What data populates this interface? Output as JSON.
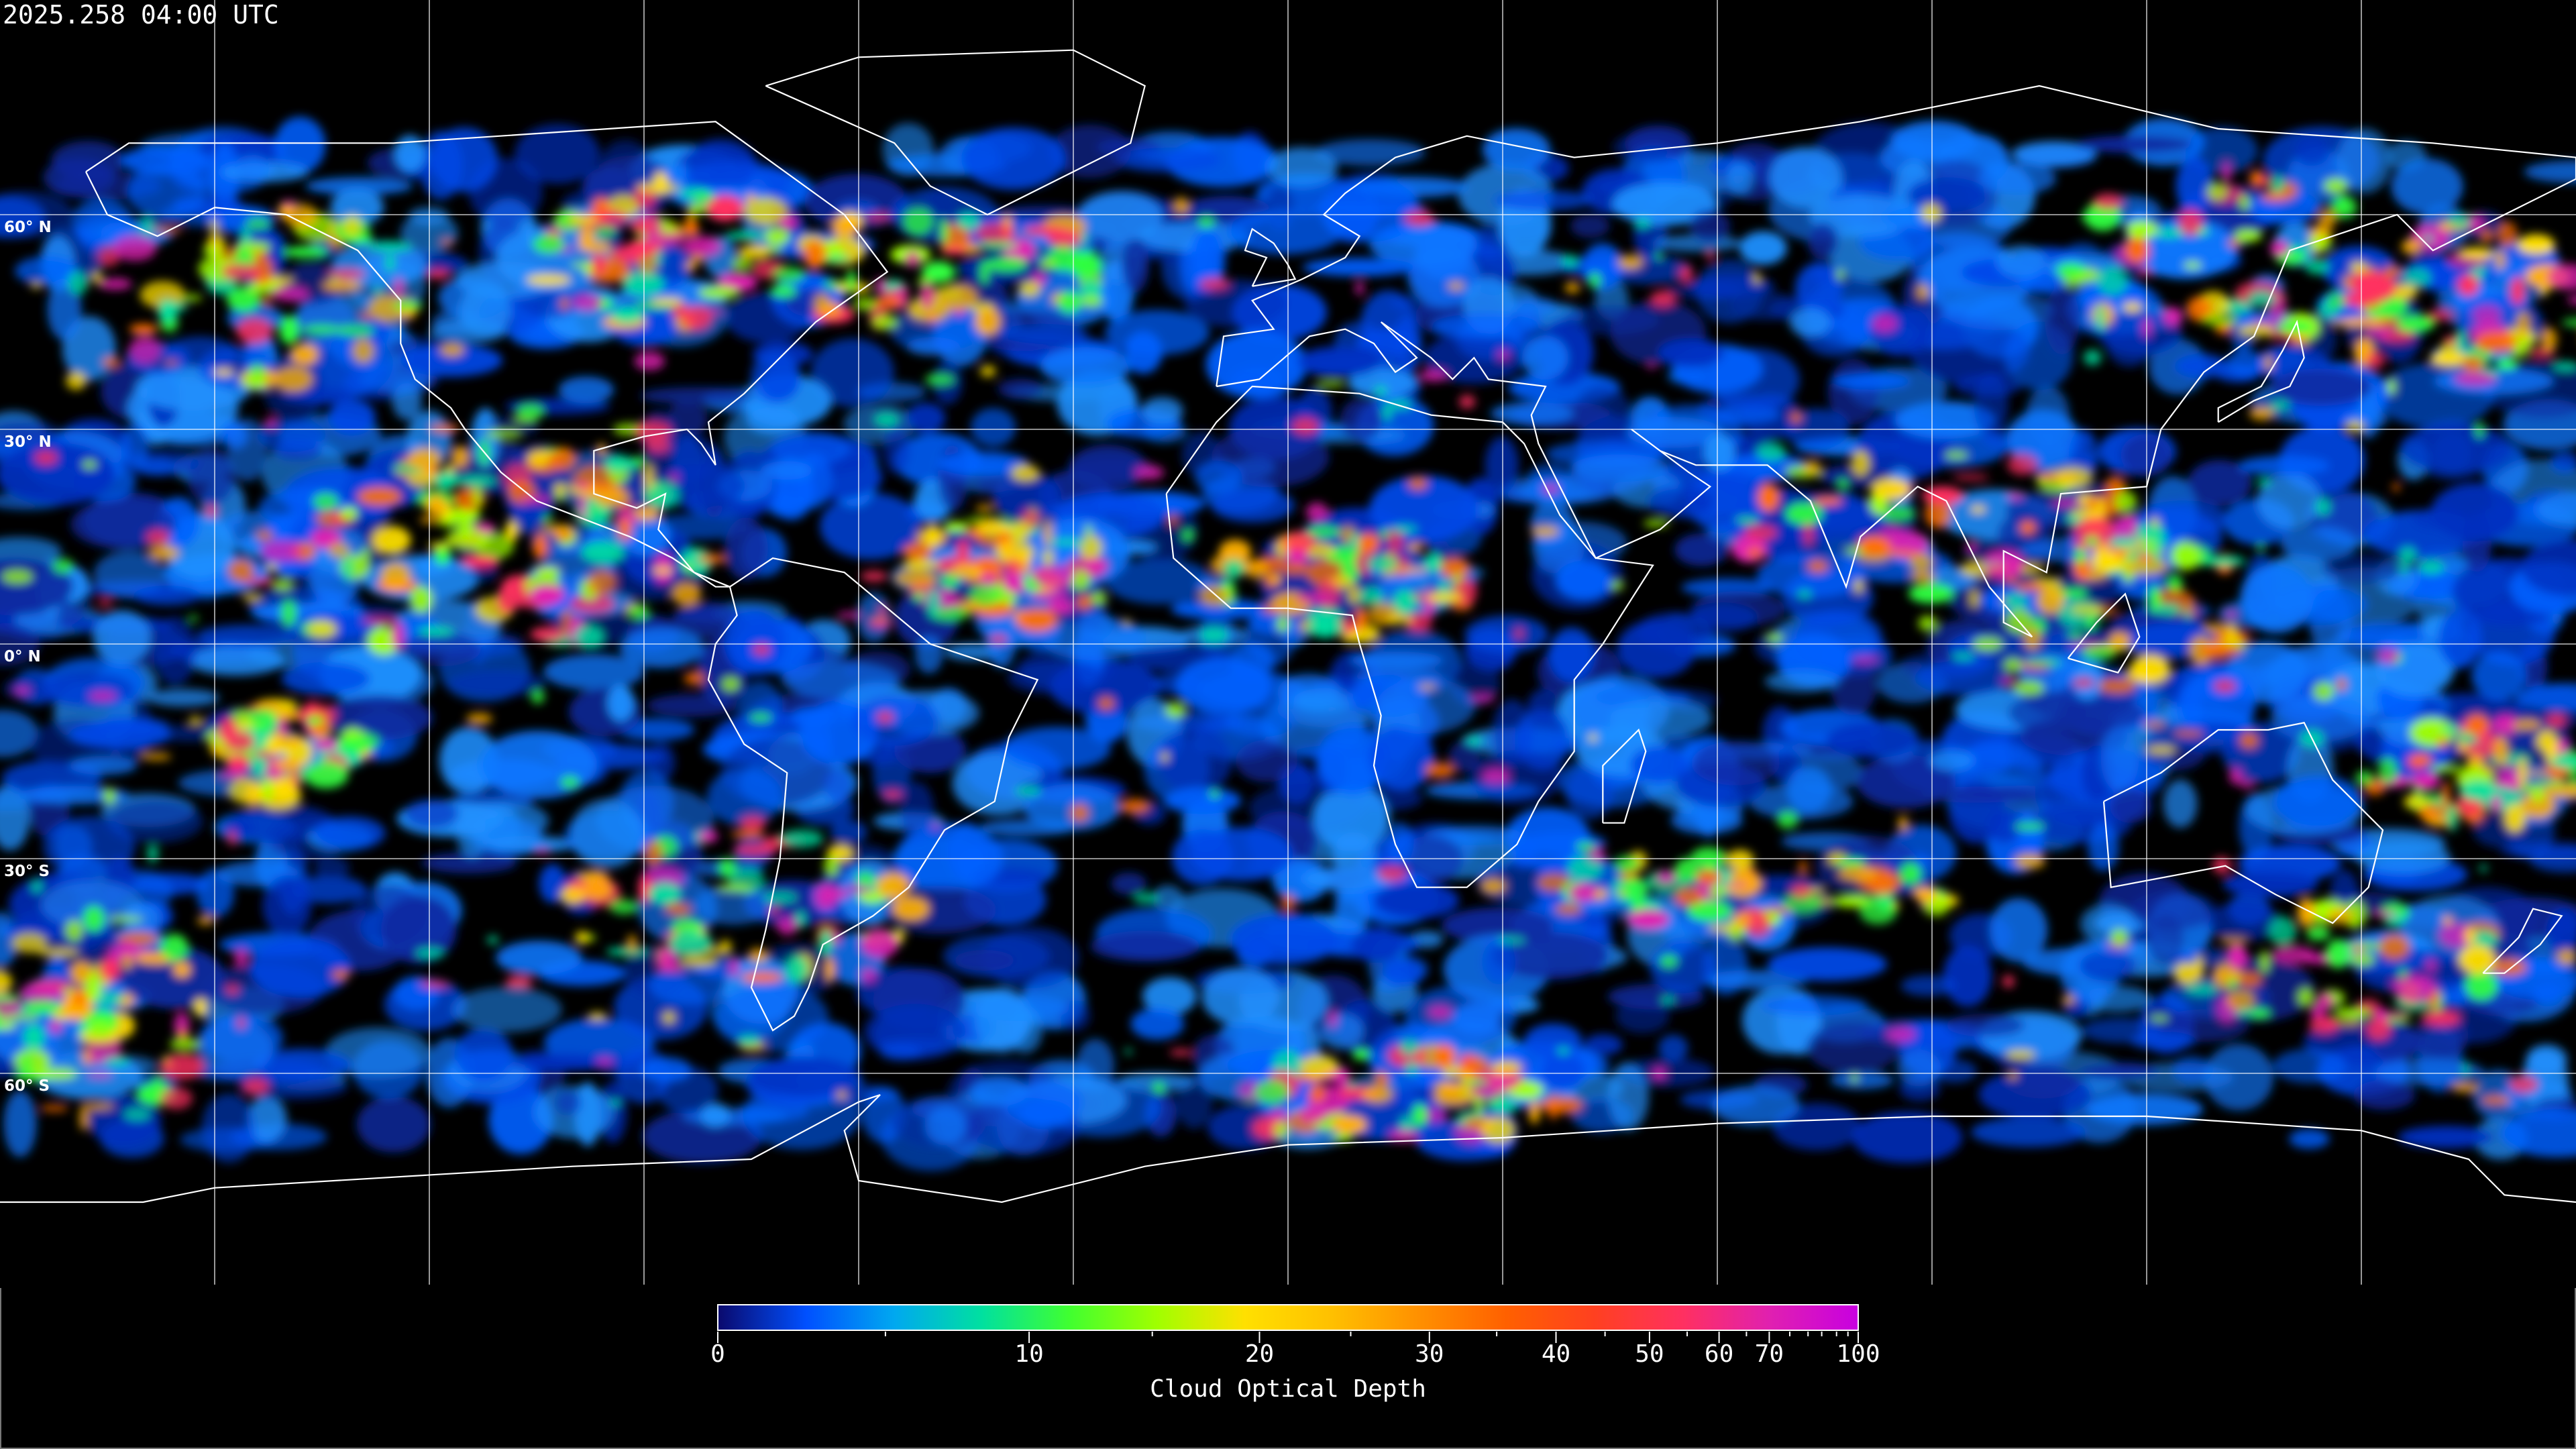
{
  "title": "2025.258 04:00 UTC",
  "map": {
    "projection": "equirectangular",
    "graticule_spacing_deg": 30,
    "coastlines": true,
    "latitude_labels": [
      {
        "lat": 60,
        "text": "60° N"
      },
      {
        "lat": 30,
        "text": "30° N"
      },
      {
        "lat": 0,
        "text": "0° N"
      },
      {
        "lat": -30,
        "text": "30° S"
      },
      {
        "lat": -60,
        "text": "60° S"
      }
    ]
  },
  "colorbar": {
    "label": "Cloud Optical Depth",
    "range": [
      0,
      100
    ],
    "major_ticks": [
      {
        "value": 0,
        "text": "0"
      },
      {
        "value": 10,
        "text": "10"
      },
      {
        "value": 20,
        "text": "20"
      },
      {
        "value": 30,
        "text": "30"
      },
      {
        "value": 40,
        "text": "40"
      },
      {
        "value": 50,
        "text": "50"
      },
      {
        "value": 60,
        "text": "60"
      },
      {
        "value": 70,
        "text": "70"
      },
      {
        "value": 100,
        "text": "100"
      }
    ],
    "minor_ticks": [
      5,
      15,
      25,
      35,
      45,
      55,
      65,
      75,
      80,
      85,
      90,
      95
    ],
    "colors": [
      "#0a0a6e",
      "#0050ff",
      "#00a8f0",
      "#00e0a0",
      "#40ff30",
      "#a0ff00",
      "#ffe000",
      "#ffc000",
      "#ff9000",
      "#ff6000",
      "#ff4020",
      "#ff3060",
      "#e020b0",
      "#c800e0"
    ]
  }
}
